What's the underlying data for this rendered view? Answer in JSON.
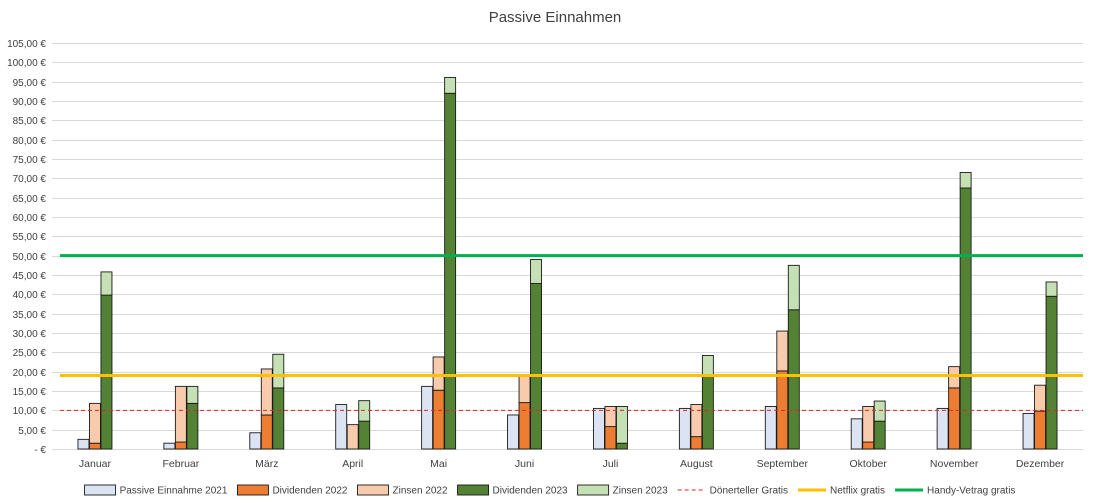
{
  "chart_data": {
    "type": "bar",
    "title": "Passive Einnahmen",
    "xlabel": "",
    "ylabel": "",
    "ylim": [
      0,
      105
    ],
    "y_ticks": [
      {
        "value": 0,
        "label": "-  €"
      },
      {
        "value": 5,
        "label": "5,00 €"
      },
      {
        "value": 10,
        "label": "10,00 €"
      },
      {
        "value": 15,
        "label": "15,00 €"
      },
      {
        "value": 20,
        "label": "20,00 €"
      },
      {
        "value": 25,
        "label": "25,00 €"
      },
      {
        "value": 30,
        "label": "30,00 €"
      },
      {
        "value": 35,
        "label": "35,00 €"
      },
      {
        "value": 40,
        "label": "40,00 €"
      },
      {
        "value": 45,
        "label": "45,00 €"
      },
      {
        "value": 50,
        "label": "50,00 €"
      },
      {
        "value": 55,
        "label": "55,00 €"
      },
      {
        "value": 60,
        "label": "60,00 €"
      },
      {
        "value": 65,
        "label": "65,00 €"
      },
      {
        "value": 70,
        "label": "70,00 €"
      },
      {
        "value": 75,
        "label": "75,00 €"
      },
      {
        "value": 80,
        "label": "80,00 €"
      },
      {
        "value": 85,
        "label": "85,00 €"
      },
      {
        "value": 90,
        "label": "90,00 €"
      },
      {
        "value": 95,
        "label": "95,00 €"
      },
      {
        "value": 100,
        "label": "100,00 €"
      },
      {
        "value": 105,
        "label": "105,00 €"
      }
    ],
    "categories": [
      "Januar",
      "Februar",
      "März",
      "April",
      "Mai",
      "Juni",
      "Juli",
      "August",
      "September",
      "Oktober",
      "November",
      "Dezember"
    ],
    "bar_groups": [
      {
        "name": "2021",
        "stack": [
          {
            "series": "Passive Einnahme 2021",
            "values": [
              2.5,
              1.5,
              4.2,
              11.5,
              16.2,
              8.8,
              10.5,
              10.5,
              11.0,
              7.8,
              10.5,
              9.2
            ]
          }
        ]
      },
      {
        "name": "2022",
        "stack": [
          {
            "series": "Dividenden 2022",
            "values": [
              1.5,
              1.8,
              8.8,
              0,
              15.2,
              12.0,
              5.8,
              3.2,
              20.2,
              1.8,
              15.8,
              9.8
            ]
          },
          {
            "series": "Zinsen 2022",
            "values": [
              10.3,
              14.4,
              11.9,
              6.3,
              8.6,
              7.0,
              5.2,
              8.3,
              10.3,
              9.2,
              5.5,
              6.7
            ]
          }
        ]
      },
      {
        "name": "2023",
        "stack": [
          {
            "series": "Dividenden 2023",
            "values": [
              39.8,
              11.8,
              15.8,
              7.2,
              92.0,
              42.8,
              1.5,
              19.0,
              36.0,
              7.2,
              67.5,
              39.5
            ]
          },
          {
            "series": "Zinsen 2023",
            "values": [
              6.0,
              4.4,
              8.7,
              5.3,
              4.1,
              6.2,
              9.5,
              5.2,
              11.5,
              5.2,
              4.0,
              3.7
            ]
          }
        ]
      }
    ],
    "reference_lines": [
      {
        "series": "Dönerteller Gratis",
        "value": 10
      },
      {
        "series": "Netflix gratis",
        "value": 19
      },
      {
        "series": "Handy-Vetrag gratis",
        "value": 50
      }
    ],
    "legend": {
      "position": "bottom",
      "entries": [
        {
          "label": "Passive Einnahme 2021",
          "kind": "box",
          "fill": "#dce3f2",
          "stroke": "#1a1a1a"
        },
        {
          "label": "Dividenden 2022",
          "kind": "box",
          "fill": "#ec7d31",
          "stroke": "#1a1a1a"
        },
        {
          "label": "Zinsen 2022",
          "kind": "box",
          "fill": "#f8cbad",
          "stroke": "#1a1a1a"
        },
        {
          "label": "Dividenden 2023",
          "kind": "box",
          "fill": "#548235",
          "stroke": "#1a1a1a"
        },
        {
          "label": "Zinsen 2023",
          "kind": "box",
          "fill": "#c5e0b4",
          "stroke": "#1a1a1a"
        },
        {
          "label": "Dönerteller Gratis",
          "kind": "dash",
          "color": "#e0262a"
        },
        {
          "label": "Netflix gratis",
          "kind": "line",
          "color": "#ffc000"
        },
        {
          "label": "Handy-Vetrag gratis",
          "kind": "line",
          "color": "#00b050"
        }
      ]
    },
    "colors": {
      "Passive Einnahme 2021": "#dce3f2",
      "Dividenden 2022": "#ec7d31",
      "Zinsen 2022": "#f8cbad",
      "Dividenden 2023": "#548235",
      "Zinsen 2023": "#c5e0b4",
      "Dönerteller Gratis": "#e0262a",
      "Netflix gratis": "#ffc000",
      "Handy-Vetrag gratis": "#00b050",
      "grid": "#d9d9d9",
      "bar_outline": "#1a1a1a",
      "text": "#404040"
    },
    "grid": true
  }
}
